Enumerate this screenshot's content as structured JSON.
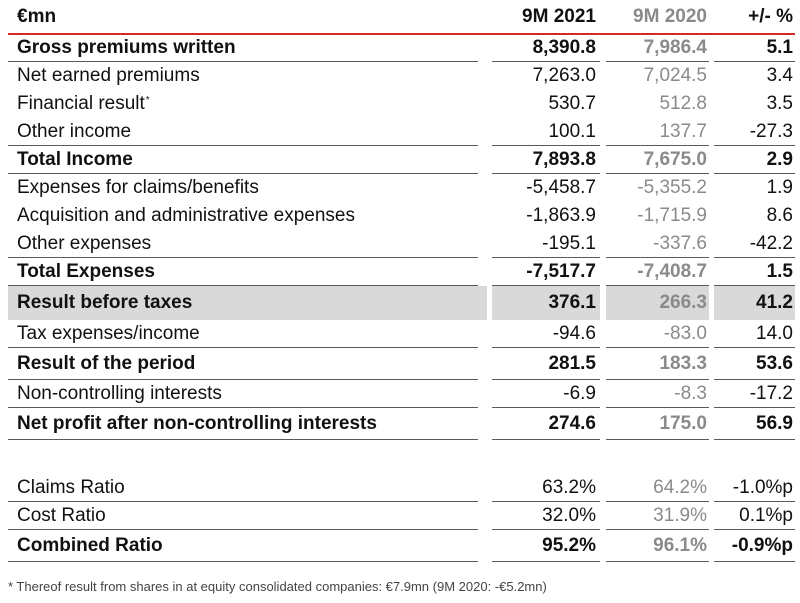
{
  "header": {
    "label": "€mn",
    "col1": "9M 2021",
    "col2": "9M 2020",
    "col3": "+/- %"
  },
  "rows": [
    {
      "label": "Gross premiums written",
      "v1": "8,390.8",
      "v2": "7,986.4",
      "v3": "5.1"
    },
    {
      "label": "Net earned premiums",
      "v1": "7,263.0",
      "v2": "7,024.5",
      "v3": "3.4"
    },
    {
      "label": "Financial result",
      "sup": "*",
      "v1": "530.7",
      "v2": "512.8",
      "v3": "3.5"
    },
    {
      "label": "Other income",
      "v1": "100.1",
      "v2": "137.7",
      "v3": "-27.3"
    },
    {
      "label": "Total Income",
      "v1": "7,893.8",
      "v2": "7,675.0",
      "v3": "2.9"
    },
    {
      "label": "Expenses for claims/benefits",
      "v1": "-5,458.7",
      "v2": "-5,355.2",
      "v3": "1.9"
    },
    {
      "label": "Acquisition and administrative expenses",
      "v1": "-1,863.9",
      "v2": "-1,715.9",
      "v3": "8.6"
    },
    {
      "label": "Other expenses",
      "v1": "-195.1",
      "v2": "-337.6",
      "v3": "-42.2"
    },
    {
      "label": "Total Expenses",
      "v1": "-7,517.7",
      "v2": "-7,408.7",
      "v3": "1.5"
    },
    {
      "label": "Result before taxes",
      "v1": "376.1",
      "v2": "266.3",
      "v3": "41.2"
    },
    {
      "label": "Tax expenses/income",
      "v1": "-94.6",
      "v2": "-83.0",
      "v3": "14.0"
    },
    {
      "label": "Result of the period",
      "v1": "281.5",
      "v2": "183.3",
      "v3": "53.6"
    },
    {
      "label": "Non-controlling interests",
      "v1": "-6.9",
      "v2": "-8.3",
      "v3": "-17.2"
    },
    {
      "label": "Net profit after non-controlling interests",
      "v1": "274.6",
      "v2": "175.0",
      "v3": "56.9"
    }
  ],
  "ratios": [
    {
      "label": "Claims Ratio",
      "v1": "63.2%",
      "v2": "64.2%",
      "v3": "-1.0%p"
    },
    {
      "label": "Cost Ratio",
      "v1": "32.0%",
      "v2": "31.9%",
      "v3": "0.1%p"
    },
    {
      "label": "Combined Ratio",
      "v1": "95.2%",
      "v2": "96.1%",
      "v3": "-0.9%p"
    }
  ],
  "footnote": "* Thereof result from shares in at equity consolidated companies: €7.9mn (9M 2020: -€5.2mn)",
  "colors": {
    "accent_line": "#d42a23",
    "prior_year_text": "#8a8a8a",
    "highlight_row": "#d9d9d9"
  }
}
